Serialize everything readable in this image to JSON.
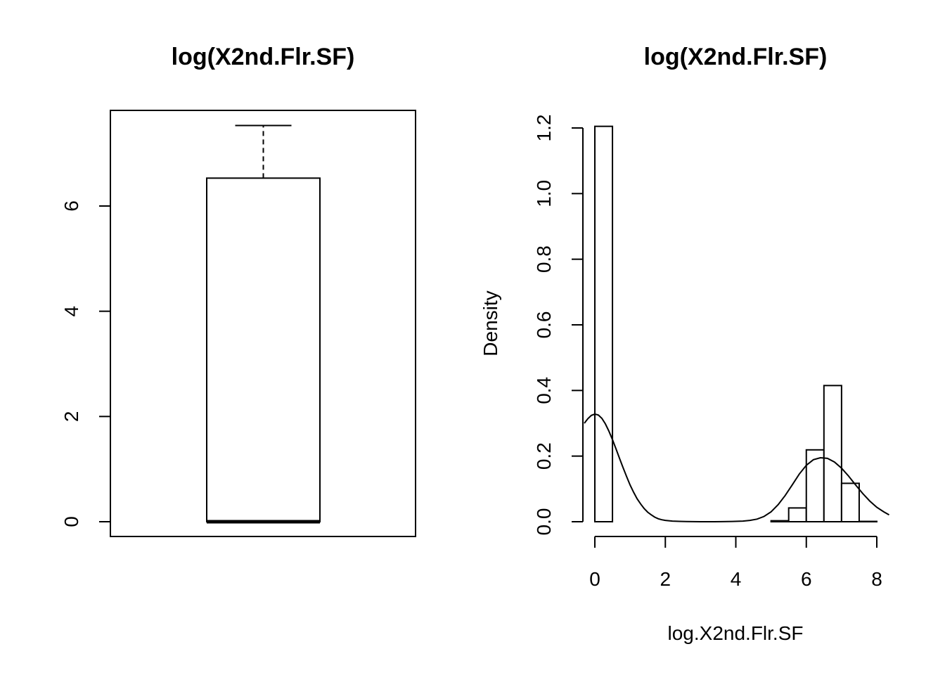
{
  "chart_data": [
    {
      "type": "boxplot",
      "title": "log(X2nd.Flr.SF)",
      "xlabel": "",
      "ylabel": "",
      "ylim": [
        -0.3,
        7.8
      ],
      "yticks": [
        0,
        2,
        4,
        6
      ],
      "ytick_labels": [
        "0",
        "2",
        "4",
        "6"
      ],
      "box": {
        "min": 0,
        "q1": 0,
        "median": 0,
        "q3": 6.53,
        "max": 7.53
      }
    },
    {
      "type": "histogram",
      "title": "log(X2nd.Flr.SF)",
      "xlabel": "log.X2nd.Flr.SF",
      "ylabel": "Density",
      "xlim": [
        -0.3,
        8.3
      ],
      "ylim": [
        0,
        1.2
      ],
      "xticks": [
        0,
        2,
        4,
        6,
        8
      ],
      "xtick_labels": [
        "0",
        "2",
        "4",
        "6",
        "8"
      ],
      "yticks": [
        0.0,
        0.2,
        0.4,
        0.6,
        0.8,
        1.0,
        1.2
      ],
      "ytick_labels": [
        "0.0",
        "0.2",
        "0.4",
        "0.6",
        "0.8",
        "1.0",
        "1.2"
      ],
      "bins": [
        {
          "x0": 0.0,
          "x1": 0.5,
          "density": 1.205
        },
        {
          "x0": 0.5,
          "x1": 1.0,
          "density": 0
        },
        {
          "x0": 1.0,
          "x1": 1.5,
          "density": 0
        },
        {
          "x0": 1.5,
          "x1": 2.0,
          "density": 0
        },
        {
          "x0": 2.0,
          "x1": 2.5,
          "density": 0
        },
        {
          "x0": 2.5,
          "x1": 3.0,
          "density": 0
        },
        {
          "x0": 3.0,
          "x1": 3.5,
          "density": 0
        },
        {
          "x0": 3.5,
          "x1": 4.0,
          "density": 0
        },
        {
          "x0": 4.0,
          "x1": 4.5,
          "density": 0
        },
        {
          "x0": 4.5,
          "x1": 5.0,
          "density": 0
        },
        {
          "x0": 5.0,
          "x1": 5.5,
          "density": 0.003
        },
        {
          "x0": 5.5,
          "x1": 6.0,
          "density": 0.042
        },
        {
          "x0": 6.0,
          "x1": 6.5,
          "density": 0.219
        },
        {
          "x0": 6.5,
          "x1": 7.0,
          "density": 0.415
        },
        {
          "x0": 7.0,
          "x1": 7.5,
          "density": 0.117
        },
        {
          "x0": 7.5,
          "x1": 8.0,
          "density": 0.001
        }
      ],
      "density_curve": {
        "x": [
          -0.3,
          -0.2,
          -0.1,
          0.0,
          0.1,
          0.2,
          0.3,
          0.4,
          0.5,
          0.6,
          0.7,
          0.8,
          0.9,
          1.0,
          1.1,
          1.2,
          1.3,
          1.4,
          1.5,
          1.6,
          1.7,
          1.8,
          1.9,
          2.0,
          2.2,
          2.4,
          2.6,
          2.8,
          3.0,
          3.3,
          3.6,
          3.9,
          4.2,
          4.4,
          4.6,
          4.8,
          5.0,
          5.2,
          5.4,
          5.6,
          5.8,
          6.0,
          6.2,
          6.4,
          6.6,
          6.8,
          7.0,
          7.2,
          7.4,
          7.6,
          7.8,
          8.0,
          8.2,
          8.35
        ],
        "y": [
          0.3,
          0.314,
          0.324,
          0.328,
          0.325,
          0.315,
          0.298,
          0.276,
          0.25,
          0.222,
          0.193,
          0.165,
          0.138,
          0.112,
          0.09,
          0.07,
          0.054,
          0.04,
          0.029,
          0.021,
          0.014,
          0.009,
          0.006,
          0.004,
          0.002,
          0.001,
          0.0004,
          0.0002,
          0.0001,
          0.0001,
          0.0003,
          0.0008,
          0.002,
          0.004,
          0.008,
          0.016,
          0.03,
          0.052,
          0.08,
          0.112,
          0.145,
          0.172,
          0.189,
          0.195,
          0.193,
          0.182,
          0.163,
          0.139,
          0.112,
          0.086,
          0.063,
          0.044,
          0.03,
          0.021
        ]
      }
    }
  ]
}
